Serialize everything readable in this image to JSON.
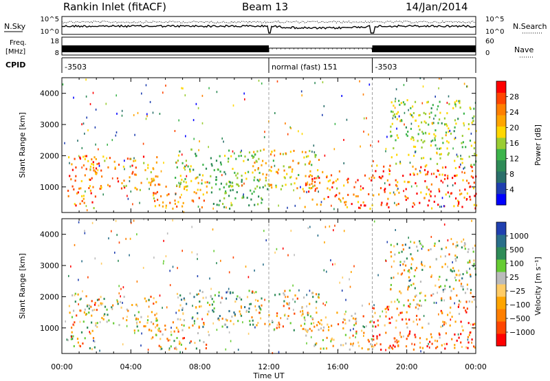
{
  "header": {
    "station": "Rankin Inlet (fitACF)",
    "beam": "Beam 13",
    "date": "14/Jan/2014"
  },
  "noise_panel": {
    "left_label": "N.Sky",
    "right_label": "N.Search",
    "left_ticks": [
      "10^5",
      "10^0"
    ],
    "right_ticks": [
      "10^5",
      "10^0"
    ]
  },
  "freq_panel": {
    "left_label_line1": "Freq.",
    "left_label_line2": "[MHz]",
    "left_ticks": [
      "18",
      "8"
    ],
    "right_label": "Nave",
    "right_ticks": [
      "60",
      "0"
    ]
  },
  "cpid_panel": {
    "label": "CPID",
    "segments": [
      {
        "start_hour": 0,
        "end_hour": 12,
        "text": "-3503"
      },
      {
        "start_hour": 12,
        "end_hour": 18,
        "text": "normal (fast) 151"
      },
      {
        "start_hour": 18,
        "end_hour": 24,
        "text": "-3503"
      }
    ]
  },
  "chart_data": [
    {
      "type": "heatmap",
      "name": "power",
      "ylabel": "Slant Range [km]",
      "y_ticks": [
        "1000",
        "2000",
        "3000",
        "4000"
      ],
      "ylim": [
        180,
        4500
      ],
      "xlim": [
        0,
        24
      ],
      "colorbar": {
        "label": "Power [dB]",
        "ticks": [
          "4",
          "8",
          "12",
          "16",
          "20",
          "24",
          "28"
        ],
        "colors": [
          "#0000ff",
          "#1f3fb0",
          "#2a6f6a",
          "#2e8b57",
          "#3cb44b",
          "#9acd32",
          "#ffd700",
          "#ffa500",
          "#ff7f00",
          "#ff4500",
          "#ff0000"
        ]
      },
      "echo_regions": [
        {
          "t0": 0.3,
          "t1": 2.0,
          "r0": 300,
          "r1": 2100,
          "intensity": 0.9
        },
        {
          "t0": 1.5,
          "t1": 5.6,
          "r0": 900,
          "r1": 2000,
          "intensity": 0.85
        },
        {
          "t0": 5.0,
          "t1": 8.5,
          "r0": 300,
          "r1": 1200,
          "intensity": 0.8
        },
        {
          "t0": 6.5,
          "t1": 11.5,
          "r0": 1000,
          "r1": 2200,
          "intensity": 0.5
        },
        {
          "t0": 8.5,
          "t1": 12.0,
          "r0": 300,
          "r1": 1200,
          "intensity": 0.45
        },
        {
          "t0": 11.0,
          "t1": 15.0,
          "r0": 900,
          "r1": 2200,
          "intensity": 0.7
        },
        {
          "t0": 14.0,
          "t1": 18.0,
          "r0": 300,
          "r1": 1500,
          "intensity": 0.9
        },
        {
          "t0": 18.0,
          "t1": 24.0,
          "r0": 300,
          "r1": 1700,
          "intensity": 0.95
        },
        {
          "t0": 19.0,
          "t1": 24.0,
          "r0": 1700,
          "r1": 3800,
          "intensity": 0.55
        }
      ]
    },
    {
      "type": "heatmap",
      "name": "velocity",
      "ylabel": "Slant Range [km]",
      "y_ticks": [
        "1000",
        "2000",
        "3000",
        "4000"
      ],
      "ylim": [
        180,
        4500
      ],
      "xlim": [
        0,
        24
      ],
      "colorbar": {
        "label": "Velocity [m s⁻¹]",
        "ticks": [
          "1000",
          "500",
          "100",
          "25",
          "−25",
          "−100",
          "−500",
          "−1000"
        ],
        "colors": [
          "#2040b0",
          "#2a6f8a",
          "#2e8b57",
          "#66cc33",
          "#bbbbbb",
          "#ffcc66",
          "#ffa500",
          "#ff7f00",
          "#ff4500",
          "#ff0000"
        ]
      },
      "echo_regions": [
        {
          "t0": 0.3,
          "t1": 2.0,
          "r0": 300,
          "r1": 2100,
          "intensity": 0.6
        },
        {
          "t0": 1.5,
          "t1": 5.6,
          "r0": 900,
          "r1": 2000,
          "intensity": 0.55
        },
        {
          "t0": 5.0,
          "t1": 8.5,
          "r0": 300,
          "r1": 1200,
          "intensity": 0.6
        },
        {
          "t0": 6.5,
          "t1": 11.5,
          "r0": 1000,
          "r1": 2200,
          "intensity": 0.4
        },
        {
          "t0": 11.0,
          "t1": 15.0,
          "r0": 900,
          "r1": 2200,
          "intensity": 0.55
        },
        {
          "t0": 14.0,
          "t1": 18.0,
          "r0": 300,
          "r1": 1500,
          "intensity": 0.6
        },
        {
          "t0": 18.0,
          "t1": 24.0,
          "r0": 300,
          "r1": 1700,
          "intensity": 0.8
        },
        {
          "t0": 19.0,
          "t1": 24.0,
          "r0": 1700,
          "r1": 3800,
          "intensity": 0.5
        }
      ]
    }
  ],
  "x_axis": {
    "label": "Time UT",
    "ticks": [
      "00:00",
      "04:00",
      "08:00",
      "12:00",
      "16:00",
      "20:00",
      "00:00"
    ],
    "tick_hours": [
      0,
      4,
      8,
      12,
      16,
      20,
      24
    ]
  },
  "mode_change_hours": [
    12,
    18
  ]
}
